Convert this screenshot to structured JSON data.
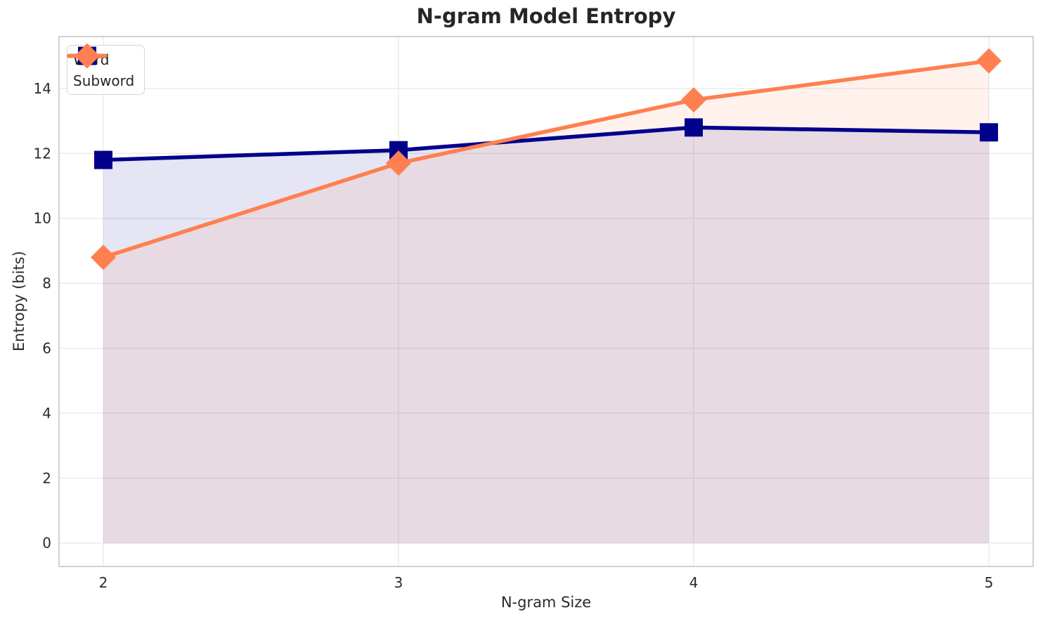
{
  "chart_data": {
    "type": "line",
    "title": "N-gram Model Entropy",
    "xlabel": "N-gram Size",
    "ylabel": "Entropy (bits)",
    "x": [
      2,
      3,
      4,
      5
    ],
    "series": [
      {
        "name": "Word",
        "values": [
          11.8,
          12.1,
          12.8,
          12.65
        ],
        "color": "#00008B",
        "fill_color": "rgba(0,0,139,0.1)",
        "marker": "square"
      },
      {
        "name": "Subword",
        "values": [
          8.8,
          11.7,
          13.65,
          14.85
        ],
        "color": "#FF7F50",
        "fill_color": "rgba(255,127,80,0.1)",
        "marker": "diamond"
      }
    ],
    "x_ticks": [
      2,
      3,
      4,
      5
    ],
    "y_ticks": [
      0,
      2,
      4,
      6,
      8,
      10,
      12,
      14
    ],
    "xlim": [
      1.85,
      5.15
    ],
    "ylim": [
      -0.72,
      15.6
    ],
    "fill_baseline": 0,
    "grid": true,
    "legend_position": "upper-left",
    "colors": {
      "grid": "#E9E9E9",
      "spine": "#D0D0D0",
      "tick_text": "#2B2B2B",
      "title_text": "#262626",
      "background": "#FFFFFF"
    }
  }
}
